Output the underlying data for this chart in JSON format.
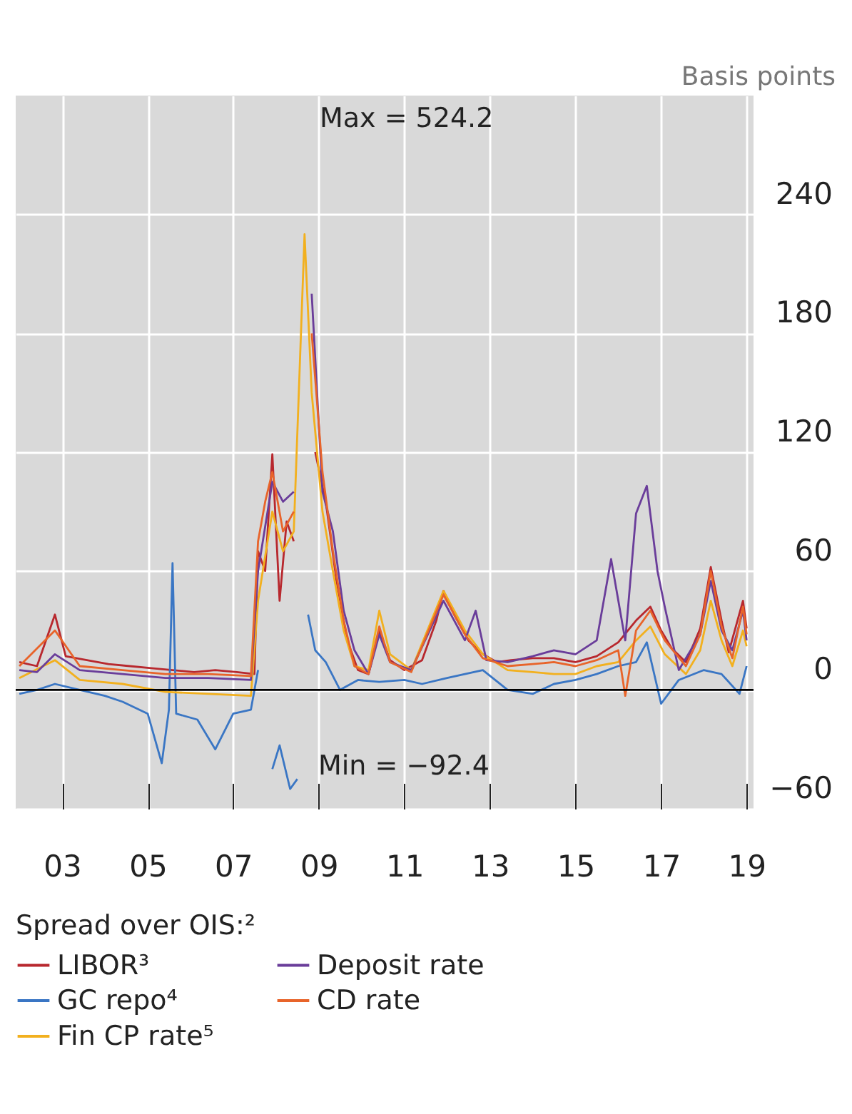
{
  "chart_data": {
    "type": "line",
    "ylabel": "Basis points",
    "legend_title": "Spread over OIS:²",
    "annotations": [
      "Max = 524.2",
      "Min = −92.4"
    ],
    "xlim": [
      "2001-12",
      "2019-03"
    ],
    "ylim": [
      -60,
      300
    ],
    "xticks": [
      {
        "value": "2003",
        "label": "03"
      },
      {
        "value": "2005",
        "label": "05"
      },
      {
        "value": "2007",
        "label": "07"
      },
      {
        "value": "2009",
        "label": "09"
      },
      {
        "value": "2011",
        "label": "11"
      },
      {
        "value": "2013",
        "label": "13"
      },
      {
        "value": "2015",
        "label": "15"
      },
      {
        "value": "2017",
        "label": "17"
      },
      {
        "value": "2019",
        "label": "19"
      }
    ],
    "yticks": [
      -60,
      0,
      60,
      120,
      180,
      240
    ],
    "grid": true,
    "legend": "bottom",
    "line_style": "solid",
    "marker": "none",
    "ref_lines": [
      {
        "axis": "y",
        "value": 0,
        "color": "#000000"
      }
    ],
    "series": [
      {
        "name": "LIBOR³",
        "color": "#b8282e",
        "x": [
          "2002-01",
          "2002-06",
          "2002-11",
          "2003-02",
          "2003-08",
          "2004-02",
          "2004-08",
          "2005-02",
          "2005-08",
          "2006-02",
          "2006-08",
          "2007-02",
          "2007-07",
          "2007-08",
          "2007-10",
          "2007-12",
          "2008-02",
          "2008-04",
          "2008-06",
          "2008-09",
          "2008-10",
          "2008-12",
          "2009-03",
          "2009-06",
          "2009-09",
          "2009-12",
          "2010-03",
          "2010-06",
          "2010-09",
          "2011-01",
          "2011-06",
          "2011-10",
          "2011-12",
          "2012-03",
          "2012-07",
          "2012-11",
          "2013-03",
          "2013-07",
          "2014-01",
          "2014-07",
          "2015-01",
          "2015-07",
          "2016-01",
          "2016-06",
          "2016-10",
          "2017-01",
          "2017-04",
          "2017-08",
          "2017-12",
          "2018-03",
          "2018-06",
          "2018-08",
          "2018-12",
          "2019-01"
        ],
        "values": [
          14,
          12,
          38,
          17,
          15,
          13,
          12,
          11,
          10,
          9,
          10,
          9,
          8,
          70,
          60,
          119,
          45,
          85,
          75,
          null,
          null,
          120,
          95,
          55,
          25,
          10,
          8,
          30,
          15,
          10,
          15,
          35,
          50,
          38,
          25,
          18,
          14,
          15,
          16,
          16,
          14,
          17,
          24,
          35,
          42,
          30,
          21,
          14,
          31,
          62,
          35,
          19,
          45,
          31
        ]
      },
      {
        "name": "GC repo⁴",
        "color": "#3a76c4",
        "x": [
          "2002-01",
          "2002-06",
          "2002-11",
          "2003-06",
          "2004-01",
          "2004-06",
          "2005-01",
          "2005-05",
          "2005-07",
          "2005-08",
          "2005-09",
          "2006-03",
          "2006-08",
          "2007-01",
          "2007-06",
          "2007-08",
          "2007-09",
          "2007-12",
          "2008-02",
          "2008-05",
          "2008-07",
          "2008-09",
          "2008-10",
          "2008-12",
          "2009-03",
          "2009-07",
          "2009-12",
          "2010-06",
          "2011-01",
          "2011-06",
          "2012-01",
          "2012-06",
          "2012-11",
          "2013-06",
          "2014-01",
          "2014-07",
          "2015-01",
          "2015-07",
          "2016-01",
          "2016-06",
          "2016-09",
          "2017-01",
          "2017-06",
          "2018-01",
          "2018-06",
          "2018-11",
          "2019-01"
        ],
        "values": [
          -2,
          0,
          3,
          0,
          -3,
          -6,
          -12,
          -37,
          -10,
          64,
          -12,
          -15,
          -30,
          -12,
          -10,
          10,
          null,
          -40,
          -28,
          -50,
          -45,
          null,
          38,
          20,
          14,
          0,
          5,
          4,
          5,
          3,
          6,
          8,
          10,
          0,
          -2,
          3,
          5,
          8,
          12,
          14,
          24,
          -7,
          5,
          10,
          8,
          -2,
          12
        ]
      },
      {
        "name": "Fin CP rate⁵",
        "color": "#f2b01e",
        "x": [
          "2002-01",
          "2002-11",
          "2003-06",
          "2004-06",
          "2005-06",
          "2006-06",
          "2007-06",
          "2007-08",
          "2007-12",
          "2008-03",
          "2008-06",
          "2008-09",
          "2008-11",
          "2009-02",
          "2009-05",
          "2009-08",
          "2009-11",
          "2010-03",
          "2010-06",
          "2010-09",
          "2011-03",
          "2011-12",
          "2012-06",
          "2012-11",
          "2013-06",
          "2014-01",
          "2014-07",
          "2015-01",
          "2015-07",
          "2016-01",
          "2016-06",
          "2016-10",
          "2017-02",
          "2017-08",
          "2017-12",
          "2018-03",
          "2018-06",
          "2018-09",
          "2018-12",
          "2019-01"
        ],
        "values": [
          6,
          15,
          5,
          3,
          -1,
          -2,
          -3,
          45,
          90,
          70,
          80,
          230,
          150,
          90,
          60,
          30,
          12,
          10,
          40,
          18,
          10,
          50,
          30,
          18,
          10,
          9,
          8,
          8,
          12,
          14,
          25,
          32,
          18,
          8,
          20,
          45,
          25,
          12,
          30,
          22
        ]
      },
      {
        "name": "Deposit rate",
        "color": "#6a3d9a",
        "x": [
          "2002-01",
          "2002-06",
          "2002-11",
          "2003-06",
          "2004-06",
          "2005-06",
          "2006-06",
          "2007-06",
          "2007-08",
          "2007-12",
          "2008-03",
          "2008-06",
          "2008-09",
          "2008-11",
          "2009-02",
          "2009-05",
          "2009-08",
          "2009-11",
          "2010-03",
          "2010-06",
          "2010-09",
          "2011-03",
          "2011-12",
          "2012-06",
          "2012-09",
          "2012-12",
          "2013-06",
          "2014-01",
          "2014-07",
          "2015-01",
          "2015-07",
          "2015-11",
          "2016-03",
          "2016-06",
          "2016-09",
          "2016-12",
          "2017-02",
          "2017-06",
          "2017-12",
          "2018-03",
          "2018-06",
          "2018-09",
          "2018-12",
          "2019-01"
        ],
        "values": [
          10,
          9,
          18,
          10,
          8,
          6,
          6,
          5,
          60,
          105,
          95,
          100,
          null,
          200,
          100,
          80,
          40,
          20,
          8,
          28,
          14,
          10,
          45,
          25,
          40,
          15,
          14,
          17,
          20,
          18,
          25,
          66,
          25,
          89,
          103,
          60,
          42,
          10,
          28,
          55,
          30,
          20,
          40,
          25
        ]
      },
      {
        "name": "CD rate",
        "color": "#e8642a",
        "x": [
          "2002-01",
          "2002-11",
          "2003-06",
          "2004-06",
          "2005-06",
          "2006-06",
          "2007-06",
          "2007-08",
          "2007-10",
          "2007-12",
          "2008-03",
          "2008-06",
          "2008-09",
          "2008-11",
          "2009-02",
          "2009-05",
          "2009-08",
          "2009-11",
          "2010-03",
          "2010-06",
          "2010-09",
          "2011-03",
          "2011-12",
          "2012-06",
          "2012-11",
          "2013-06",
          "2014-01",
          "2014-07",
          "2015-01",
          "2015-07",
          "2016-01",
          "2016-03",
          "2016-06",
          "2016-10",
          "2017-02",
          "2017-08",
          "2017-12",
          "2018-03",
          "2018-06",
          "2018-09",
          "2018-12",
          "2019-01"
        ],
        "values": [
          12,
          30,
          12,
          10,
          8,
          8,
          7,
          75,
          95,
          110,
          80,
          90,
          null,
          180,
          110,
          70,
          35,
          12,
          8,
          32,
          14,
          9,
          48,
          28,
          16,
          12,
          13,
          14,
          12,
          15,
          20,
          -3,
          30,
          40,
          25,
          12,
          28,
          60,
          32,
          16,
          42,
          28
        ]
      }
    ]
  }
}
